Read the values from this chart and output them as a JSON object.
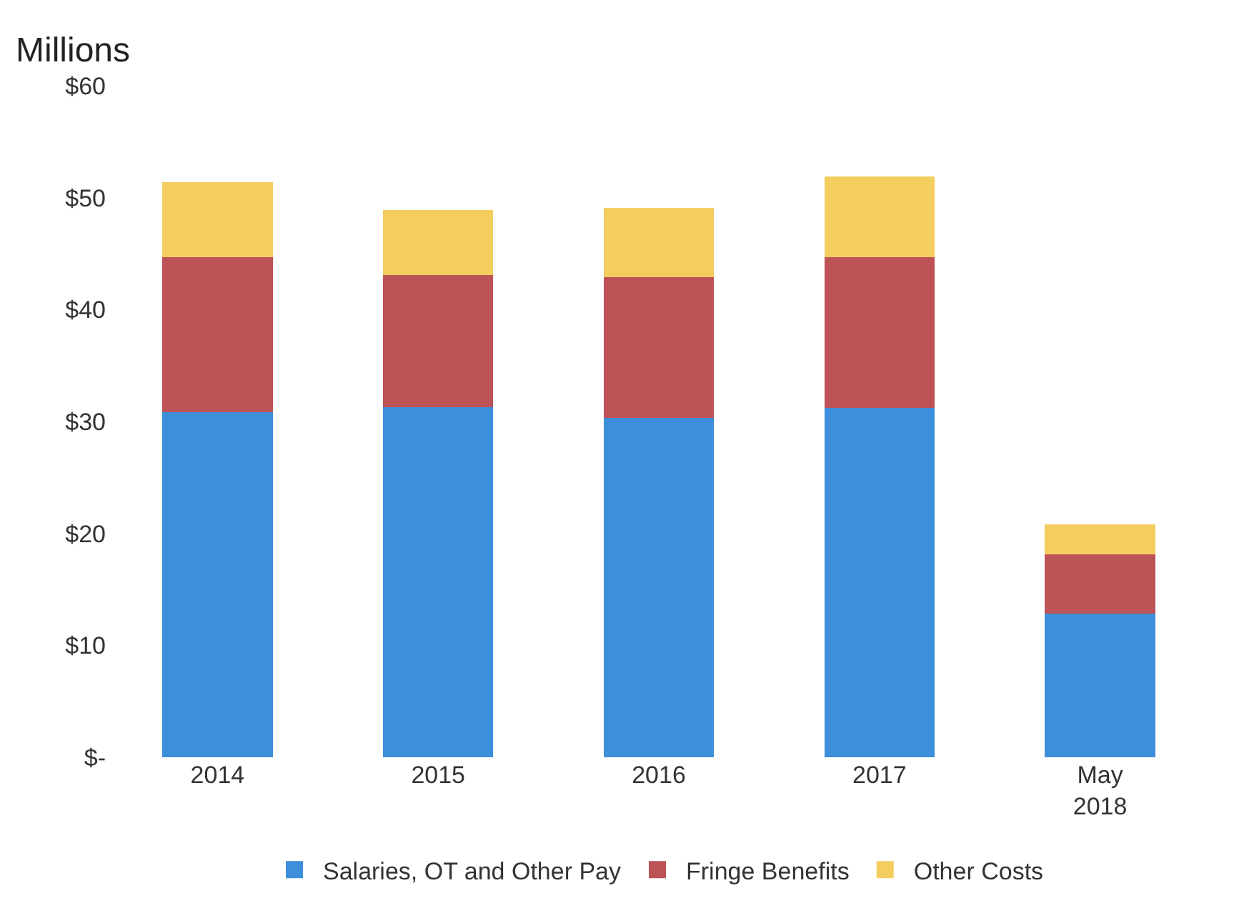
{
  "chart_data": {
    "type": "bar",
    "stacked": true,
    "ylabel": "Millions",
    "categories": [
      "2014",
      "2015",
      "2016",
      "2017",
      "May 2018"
    ],
    "series": [
      {
        "name": "Salaries, OT and Other Pay",
        "color": "#3d8edb",
        "values": [
          30.8,
          31.3,
          30.3,
          31.2,
          12.8
        ]
      },
      {
        "name": "Fringe Benefits",
        "color": "#bd5257",
        "values": [
          13.9,
          11.8,
          12.6,
          13.5,
          5.3
        ]
      },
      {
        "name": "Other Costs",
        "color": "#f4cd5f",
        "values": [
          6.7,
          5.8,
          6.2,
          7.2,
          2.7
        ]
      }
    ],
    "ylim": [
      0,
      60
    ],
    "yticks": [
      {
        "value": 0,
        "label": "$-"
      },
      {
        "value": 10,
        "label": "$10"
      },
      {
        "value": 20,
        "label": "$20"
      },
      {
        "value": 30,
        "label": "$30"
      },
      {
        "value": 40,
        "label": "$40"
      },
      {
        "value": 50,
        "label": "$50"
      },
      {
        "value": 60,
        "label": "$60"
      }
    ],
    "grid": false,
    "legend": "bottom"
  }
}
